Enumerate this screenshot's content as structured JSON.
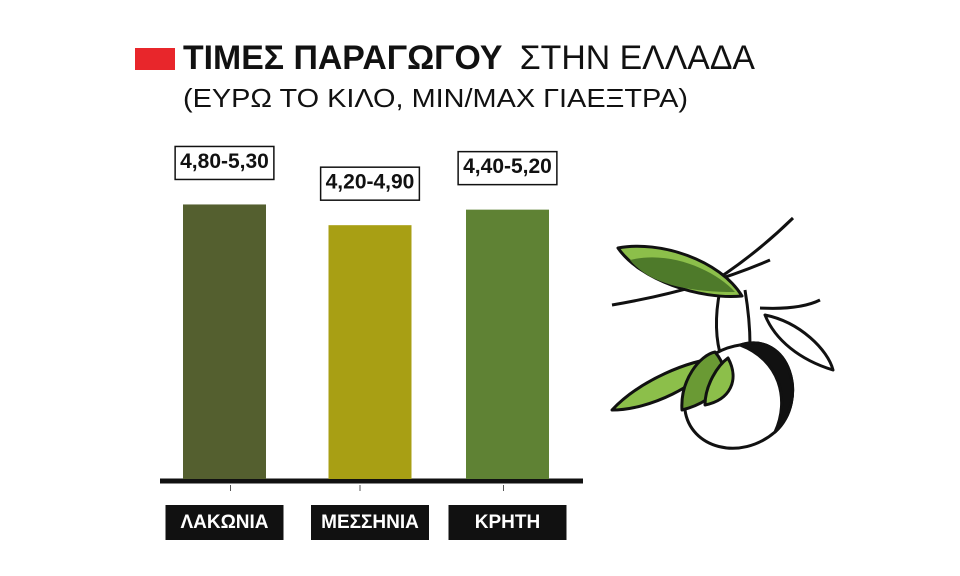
{
  "chart_data": {
    "type": "bar",
    "title": "ΤΙΜΕΣ ΠΑΡΑΓΩΓΟΥ",
    "title_2": "ΣΤΗΝ ΕΛΛΑΔΑ",
    "subtitle": "(ΕΥΡΩ ΤΟ ΚΙΛΟ, MIN/MAX ΓΙΑΕΞΤΡΑ)",
    "categories": [
      "ΛΑΚΩΝΙΑ",
      "ΜΕΣΣΗΝΙΑ",
      "ΚΡΗΤΗ"
    ],
    "values": [
      5.3,
      4.9,
      5.2
    ],
    "value_labels": [
      "4,80-5,30",
      "4,20-4,90",
      "4,40-5,20"
    ],
    "colors": [
      "#545f2f",
      "#a89f14",
      "#5f8234"
    ]
  }
}
